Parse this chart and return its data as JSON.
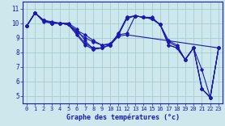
{
  "xlabel": "Graphe des températures (°c)",
  "background_color": "#cce8ec",
  "line_color": "#1a1ab0",
  "grid_color": "#9ec8cc",
  "xlim": [
    -0.5,
    23.5
  ],
  "ylim": [
    4.5,
    11.5
  ],
  "yticks": [
    5,
    6,
    7,
    8,
    9,
    10,
    11
  ],
  "xticks": [
    0,
    1,
    2,
    3,
    4,
    5,
    6,
    7,
    8,
    9,
    10,
    11,
    12,
    13,
    14,
    15,
    16,
    17,
    18,
    19,
    20,
    21,
    22,
    23
  ],
  "lines": [
    {
      "x": [
        0,
        1,
        2,
        3,
        4,
        5,
        6,
        7,
        8,
        9,
        10,
        11,
        12,
        13,
        14,
        15,
        16,
        17,
        18,
        19,
        20,
        21,
        22,
        23
      ],
      "y": [
        9.8,
        10.7,
        10.2,
        10.1,
        10.0,
        10.0,
        9.6,
        8.8,
        8.2,
        8.3,
        8.5,
        9.3,
        10.4,
        10.5,
        10.4,
        10.4,
        9.9,
        8.8,
        8.5,
        7.5,
        8.3,
        6.8,
        4.9,
        8.3
      ]
    },
    {
      "x": [
        0,
        1,
        2,
        3,
        4,
        5,
        6,
        7,
        8,
        9,
        10,
        11,
        12,
        13,
        14,
        15,
        16,
        17,
        18,
        19,
        20,
        21,
        22,
        23
      ],
      "y": [
        9.8,
        10.7,
        10.2,
        10.0,
        10.0,
        9.9,
        9.5,
        9.2,
        8.8,
        8.5,
        8.6,
        9.2,
        9.3,
        10.5,
        10.4,
        10.3,
        9.9,
        8.7,
        8.4,
        7.5,
        8.3,
        5.5,
        4.9,
        8.3
      ]
    },
    {
      "x": [
        0,
        1,
        2,
        3,
        4,
        5,
        6,
        7,
        8,
        9,
        10,
        11,
        12,
        23
      ],
      "y": [
        9.8,
        10.7,
        10.2,
        10.0,
        10.0,
        9.9,
        9.4,
        9.0,
        8.7,
        8.5,
        8.5,
        9.1,
        9.2,
        8.3
      ]
    },
    {
      "x": [
        0,
        1,
        2,
        3,
        4,
        5,
        6,
        7,
        8,
        9,
        10,
        11,
        12,
        13,
        14,
        15,
        16,
        17,
        18,
        19,
        20,
        21,
        22,
        23
      ],
      "y": [
        9.8,
        10.7,
        10.2,
        10.0,
        10.0,
        9.9,
        9.3,
        8.6,
        8.3,
        8.3,
        8.5,
        9.2,
        10.4,
        10.5,
        10.4,
        10.3,
        9.9,
        8.5,
        8.3,
        7.5,
        8.3,
        5.5,
        4.9,
        8.3
      ]
    },
    {
      "x": [
        0,
        1,
        2,
        3,
        4,
        5,
        6,
        7,
        8,
        9,
        10,
        11,
        12,
        13,
        14,
        15,
        16,
        17,
        18,
        19,
        20,
        21,
        22,
        23
      ],
      "y": [
        9.8,
        10.7,
        10.1,
        10.0,
        10.0,
        9.9,
        9.2,
        8.5,
        8.2,
        8.3,
        8.5,
        9.2,
        10.3,
        10.5,
        10.4,
        10.3,
        9.9,
        8.5,
        8.3,
        7.5,
        8.3,
        5.5,
        4.9,
        8.3
      ]
    }
  ]
}
